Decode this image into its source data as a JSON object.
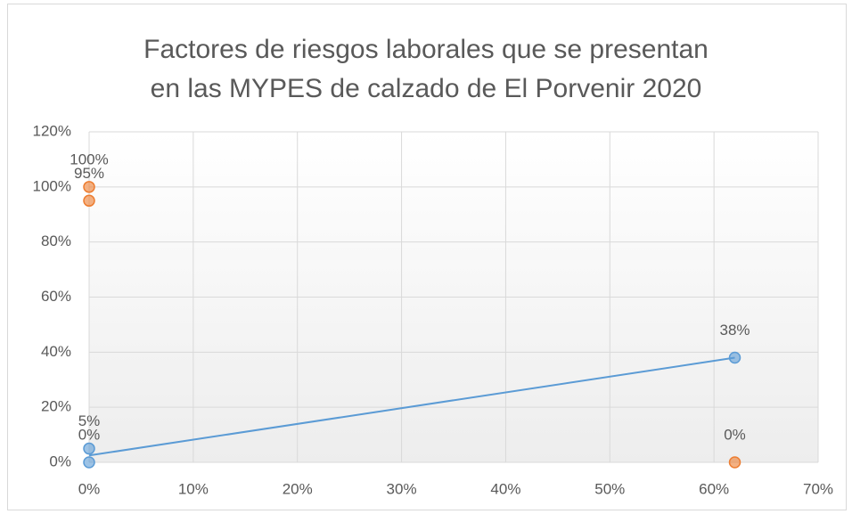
{
  "chart_data": {
    "type": "scatter",
    "title": [
      "Factores de riesgos laborales que se presentan",
      "en las MYPES de calzado de El Porvenir 2020"
    ],
    "xlim": [
      0,
      70
    ],
    "xticks": [
      {
        "value": 0,
        "label": "0%"
      },
      {
        "value": 10,
        "label": "10%"
      },
      {
        "value": 20,
        "label": "20%"
      },
      {
        "value": 30,
        "label": "30%"
      },
      {
        "value": 40,
        "label": "40%"
      },
      {
        "value": 50,
        "label": "50%"
      },
      {
        "value": 60,
        "label": "60%"
      },
      {
        "value": 70,
        "label": "70%"
      }
    ],
    "ylim": [
      0,
      120
    ],
    "yticks": [
      {
        "value": 0,
        "label": "0%"
      },
      {
        "value": 20,
        "label": "20%"
      },
      {
        "value": 40,
        "label": "40%"
      },
      {
        "value": 60,
        "label": "60%"
      },
      {
        "value": 80,
        "label": "80%"
      },
      {
        "value": 100,
        "label": "100%"
      },
      {
        "value": 120,
        "label": "120%"
      }
    ],
    "grid": true,
    "series": [
      {
        "color": "#5b9bd5",
        "x": [
          0,
          0,
          62
        ],
        "values": [
          0,
          5,
          38
        ],
        "value_labels": [
          "0%",
          "5%",
          "38%"
        ],
        "trendline": "linear"
      },
      {
        "color": "#ed7d31",
        "x": [
          0,
          0,
          62
        ],
        "values": [
          100,
          95,
          0
        ],
        "value_labels": [
          "100%",
          "95%",
          "0%"
        ]
      }
    ]
  }
}
